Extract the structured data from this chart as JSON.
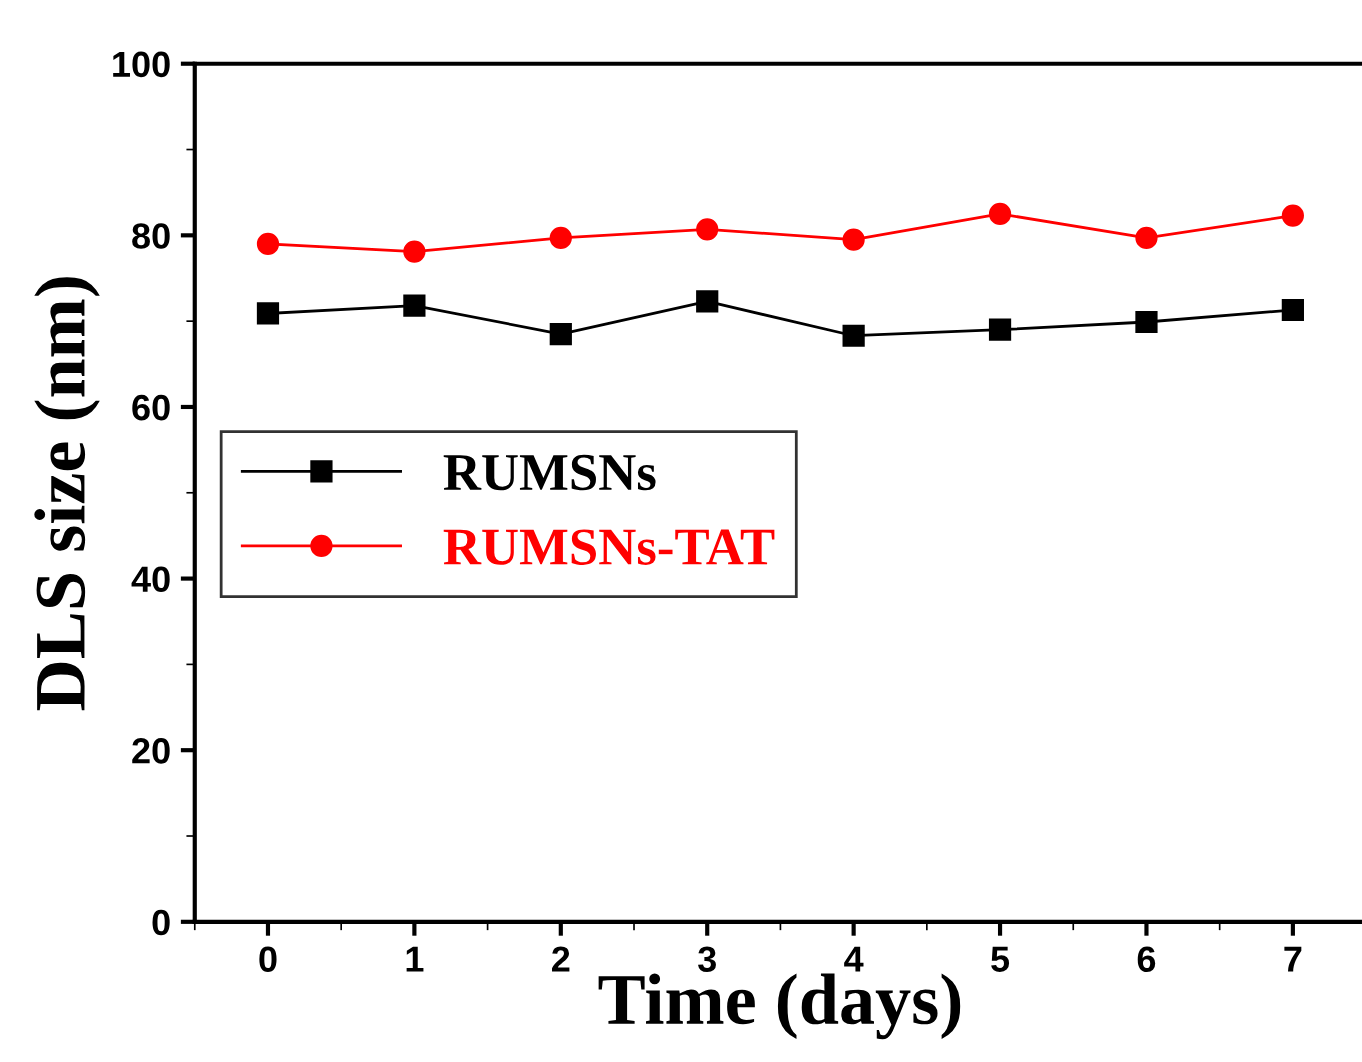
{
  "chart_data": {
    "type": "line",
    "xlabel": "Time (days)",
    "ylabel": "DLS size (nm)",
    "x": [
      0,
      1,
      2,
      3,
      4,
      5,
      6,
      7
    ],
    "series": [
      {
        "name": "RUMSNs",
        "color": "#000000",
        "marker": "square",
        "values": [
          70.9,
          71.8,
          68.5,
          72.3,
          68.3,
          69.0,
          69.9,
          71.3
        ]
      },
      {
        "name": "RUMSNs-TAT",
        "color": "#ff0000",
        "marker": "circle",
        "values": [
          79.0,
          78.1,
          79.7,
          80.7,
          79.5,
          82.5,
          79.7,
          82.3
        ]
      }
    ],
    "xlim": [
      -0.5,
      7.5
    ],
    "xticks": [
      0,
      1,
      2,
      3,
      4,
      5,
      6,
      7
    ],
    "ylim": [
      0,
      100
    ],
    "yticks": [
      0,
      20,
      40,
      60,
      80,
      100
    ],
    "legend": "center left",
    "grid": false,
    "line_style": "solid"
  }
}
